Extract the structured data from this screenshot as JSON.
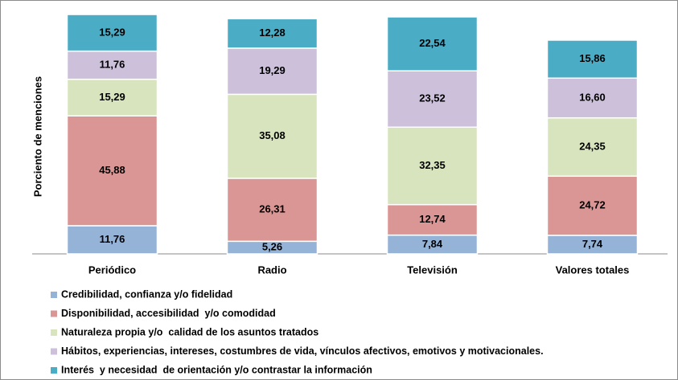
{
  "chart_data": {
    "type": "bar",
    "stacked": true,
    "ylabel": "Porciento de menciones",
    "categories": [
      "Periódico",
      "Radio",
      "Televisión",
      "Valores totales"
    ],
    "ylim": [
      0,
      100
    ],
    "series": [
      {
        "name": "Credibilidad, confianza y/o fidelidad",
        "color": "#95b3d7",
        "values": [
          11.76,
          5.26,
          7.84,
          7.74
        ],
        "value_labels": [
          "11,76",
          "5,26",
          "7,84",
          "7,74"
        ]
      },
      {
        "name": "Disponibilidad, accesibilidad  y/o comodidad",
        "color": "#da9694",
        "values": [
          45.88,
          26.31,
          12.74,
          24.72
        ],
        "value_labels": [
          "45,88",
          "26,31",
          "12,74",
          "24,72"
        ]
      },
      {
        "name": "Naturaleza propia y/o  calidad de los asuntos tratados",
        "color": "#d7e4bd",
        "values": [
          15.29,
          35.08,
          32.35,
          24.35
        ],
        "value_labels": [
          "15,29",
          "35,08",
          "32,35",
          "24,35"
        ]
      },
      {
        "name": "Hábitos, experiencias, intereses, costumbres de vida, vínculos afectivos, emotivos y motivacionales.",
        "color": "#ccc0da",
        "values": [
          11.76,
          19.29,
          23.52,
          16.6
        ],
        "value_labels": [
          "11,76",
          "19,29",
          "23,52",
          "16,60"
        ]
      },
      {
        "name": "Interés  y necesidad  de orientación y/o contrastar la información",
        "color": "#4bacc6",
        "values": [
          15.29,
          12.28,
          22.54,
          15.86
        ],
        "value_labels": [
          "15,29",
          "12,28",
          "22,54",
          "15,86"
        ]
      }
    ]
  }
}
